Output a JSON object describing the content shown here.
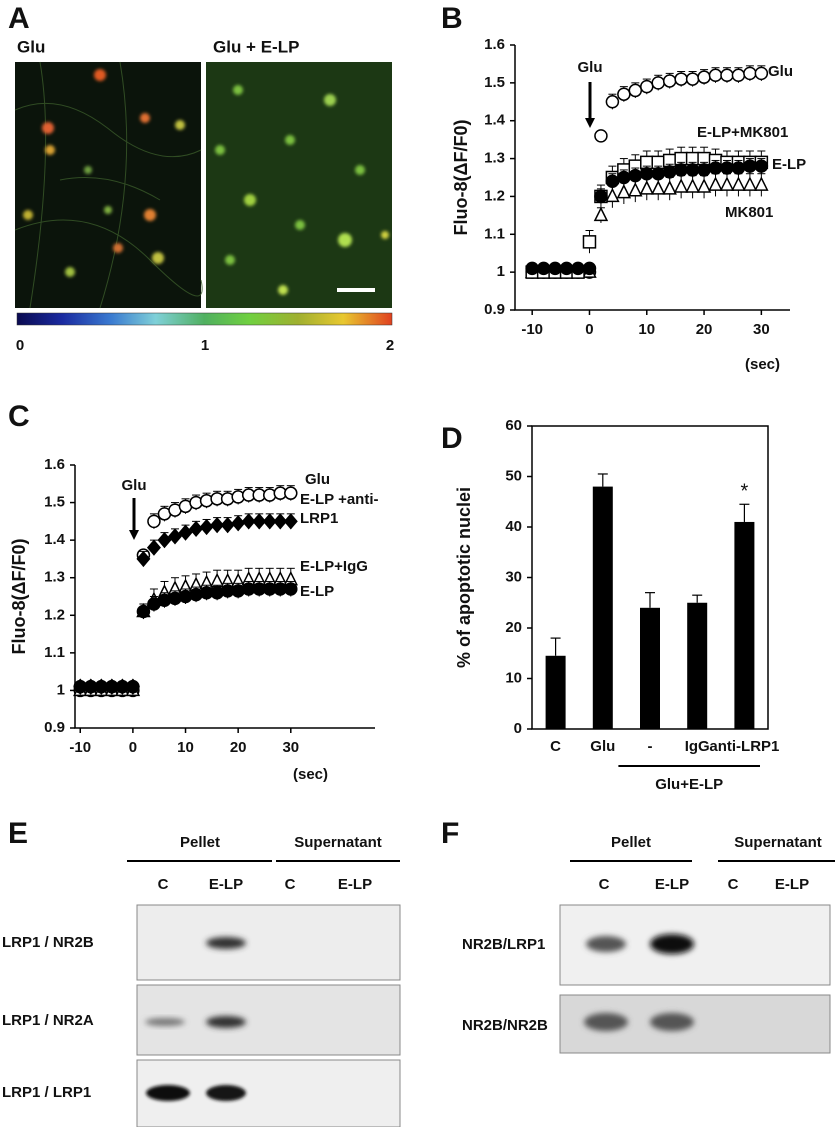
{
  "panel_a": {
    "label": "A",
    "left_title": "Glu",
    "right_title": "Glu + E-LP",
    "colorbar_ticks": [
      0,
      1,
      2
    ]
  },
  "chart_data": [
    {
      "type": "line",
      "label": "B",
      "ylabel": "Fluo-8(ΔF/F0)",
      "xlabel": "(sec)",
      "annotation": "Glu",
      "x": [
        -10,
        -8,
        -6,
        -4,
        -2,
        0,
        2,
        4,
        6,
        8,
        10,
        12,
        14,
        16,
        18,
        20,
        22,
        24,
        26,
        28,
        30
      ],
      "xlim": [
        -13,
        35
      ],
      "xticks": [
        -10,
        0,
        10,
        20,
        30
      ],
      "ylim": [
        0.9,
        1.6
      ],
      "yticks": [
        0.9,
        1,
        1.1,
        1.2,
        1.3,
        1.4,
        1.5,
        1.6
      ],
      "series": [
        {
          "name": "Glu",
          "color": "#000000",
          "marker": "circle-open",
          "values": [
            1.0,
            1.0,
            1.0,
            1.0,
            1.0,
            1.0,
            1.36,
            1.45,
            1.47,
            1.48,
            1.49,
            1.5,
            1.505,
            1.51,
            1.51,
            1.515,
            1.52,
            1.52,
            1.52,
            1.525,
            1.525
          ],
          "errors": [
            0.01,
            0.01,
            0.01,
            0.01,
            0.01,
            0.01,
            0.01,
            0.02,
            0.02,
            0.02,
            0.02,
            0.02,
            0.02,
            0.02,
            0.02,
            0.02,
            0.02,
            0.02,
            0.02,
            0.02,
            0.02
          ]
        },
        {
          "name": "MK801",
          "color": "#000000",
          "marker": "triangle-open",
          "values": [
            1.0,
            1.0,
            1.0,
            1.0,
            1.0,
            1.0,
            1.15,
            1.2,
            1.21,
            1.215,
            1.22,
            1.22,
            1.22,
            1.225,
            1.225,
            1.225,
            1.23,
            1.23,
            1.23,
            1.23,
            1.23
          ],
          "errors": [
            0.01,
            0.01,
            0.01,
            0.01,
            0.01,
            0.01,
            0.02,
            0.03,
            0.03,
            0.03,
            0.03,
            0.03,
            0.03,
            0.03,
            0.03,
            0.03,
            0.03,
            0.03,
            0.03,
            0.03,
            0.03
          ]
        },
        {
          "name": "E-LP+MK801",
          "color": "#000000",
          "marker": "square-open",
          "values": [
            1.0,
            1.0,
            1.0,
            1.0,
            1.0,
            1.08,
            1.2,
            1.25,
            1.27,
            1.28,
            1.29,
            1.29,
            1.295,
            1.3,
            1.3,
            1.3,
            1.295,
            1.29,
            1.29,
            1.29,
            1.29
          ],
          "errors": [
            0.01,
            0.01,
            0.01,
            0.01,
            0.01,
            0.03,
            0.03,
            0.03,
            0.03,
            0.03,
            0.03,
            0.03,
            0.03,
            0.03,
            0.03,
            0.03,
            0.03,
            0.03,
            0.03,
            0.03,
            0.03
          ]
        },
        {
          "name": "E-LP",
          "color": "#000000",
          "marker": "circle-filled",
          "values": [
            1.01,
            1.01,
            1.01,
            1.01,
            1.01,
            1.01,
            1.2,
            1.24,
            1.25,
            1.255,
            1.26,
            1.26,
            1.265,
            1.27,
            1.27,
            1.27,
            1.275,
            1.275,
            1.275,
            1.28,
            1.28
          ],
          "errors": [
            0.01,
            0.01,
            0.01,
            0.01,
            0.01,
            0.01,
            0.02,
            0.02,
            0.02,
            0.02,
            0.02,
            0.02,
            0.02,
            0.02,
            0.02,
            0.02,
            0.02,
            0.02,
            0.02,
            0.02,
            0.02
          ]
        }
      ]
    },
    {
      "type": "line",
      "label": "C",
      "ylabel": "Fluo-8(ΔF/F0)",
      "xlabel": "(sec)",
      "annotation": "Glu",
      "x": [
        -10,
        -8,
        -6,
        -4,
        -2,
        0,
        2,
        4,
        6,
        8,
        10,
        12,
        14,
        16,
        18,
        20,
        22,
        24,
        26,
        28,
        30
      ],
      "xlim": [
        -11,
        46
      ],
      "xticks": [
        -10,
        0,
        10,
        20,
        30
      ],
      "ylim": [
        0.9,
        1.6
      ],
      "yticks": [
        0.9,
        1,
        1.1,
        1.2,
        1.3,
        1.4,
        1.5,
        1.6
      ],
      "series": [
        {
          "name": "Glu",
          "color": "#000000",
          "marker": "circle-open",
          "values": [
            1.0,
            1.0,
            1.0,
            1.0,
            1.0,
            1.0,
            1.36,
            1.45,
            1.47,
            1.48,
            1.49,
            1.5,
            1.505,
            1.51,
            1.51,
            1.515,
            1.52,
            1.52,
            1.52,
            1.525,
            1.525
          ],
          "errors": [
            0.01,
            0.01,
            0.01,
            0.01,
            0.01,
            0.01,
            0.01,
            0.02,
            0.02,
            0.02,
            0.02,
            0.02,
            0.02,
            0.02,
            0.02,
            0.02,
            0.02,
            0.02,
            0.02,
            0.02,
            0.02
          ]
        },
        {
          "name": "E-LP+IgG",
          "color": "#000000",
          "marker": "triangle-open",
          "values": [
            1.0,
            1.0,
            1.0,
            1.0,
            1.0,
            1.0,
            1.21,
            1.24,
            1.26,
            1.27,
            1.275,
            1.28,
            1.285,
            1.29,
            1.29,
            1.29,
            1.295,
            1.295,
            1.295,
            1.295,
            1.295
          ],
          "errors": [
            0.01,
            0.01,
            0.01,
            0.01,
            0.01,
            0.01,
            0.02,
            0.03,
            0.03,
            0.03,
            0.03,
            0.03,
            0.03,
            0.03,
            0.03,
            0.03,
            0.03,
            0.03,
            0.03,
            0.03,
            0.03
          ]
        },
        {
          "name": "E-LP +anti-LRP1",
          "color": "#000000",
          "marker": "diamond-filled",
          "values": [
            1.01,
            1.01,
            1.01,
            1.01,
            1.01,
            1.01,
            1.35,
            1.38,
            1.4,
            1.41,
            1.42,
            1.43,
            1.435,
            1.44,
            1.44,
            1.445,
            1.45,
            1.45,
            1.45,
            1.45,
            1.45
          ],
          "errors": [
            0.01,
            0.01,
            0.01,
            0.01,
            0.01,
            0.01,
            0.02,
            0.02,
            0.02,
            0.02,
            0.02,
            0.02,
            0.02,
            0.02,
            0.02,
            0.02,
            0.02,
            0.02,
            0.02,
            0.02,
            0.02
          ]
        },
        {
          "name": "E-LP",
          "color": "#000000",
          "marker": "circle-filled",
          "values": [
            1.01,
            1.01,
            1.01,
            1.01,
            1.01,
            1.01,
            1.21,
            1.23,
            1.24,
            1.245,
            1.25,
            1.255,
            1.26,
            1.26,
            1.265,
            1.265,
            1.27,
            1.27,
            1.27,
            1.27,
            1.27
          ],
          "errors": [
            0.01,
            0.01,
            0.01,
            0.01,
            0.01,
            0.01,
            0.02,
            0.02,
            0.02,
            0.02,
            0.02,
            0.02,
            0.02,
            0.02,
            0.02,
            0.02,
            0.02,
            0.02,
            0.02,
            0.02,
            0.02
          ]
        }
      ]
    },
    {
      "type": "bar",
      "label": "D",
      "ylabel": "% of apoptotic nuclei",
      "annotation": "*",
      "group_label": "Glu+E-LP",
      "categories": [
        "C",
        "Glu",
        "-",
        "IgG",
        "anti-LRP1"
      ],
      "values": [
        14.5,
        48,
        24,
        25,
        41
      ],
      "errors": [
        3.5,
        2.5,
        3,
        1.5,
        3.5
      ],
      "color": "#000000",
      "ylim": [
        0,
        60
      ],
      "yticks": [
        0,
        10,
        20,
        30,
        40,
        50,
        60
      ]
    }
  ],
  "panel_e": {
    "label": "E",
    "groups": [
      "Pellet",
      "Supernatant"
    ],
    "lanes": [
      "C",
      "E-LP",
      "C",
      "E-LP"
    ],
    "rows": [
      "LRP1 / NR2B",
      "LRP1 / NR2A",
      "LRP1 / LRP1"
    ]
  },
  "panel_f": {
    "label": "F",
    "groups": [
      "Pellet",
      "Supernatant"
    ],
    "lanes": [
      "C",
      "E-LP",
      "C",
      "E-LP"
    ],
    "rows": [
      "NR2B/LRP1",
      "NR2B/NR2B"
    ]
  }
}
